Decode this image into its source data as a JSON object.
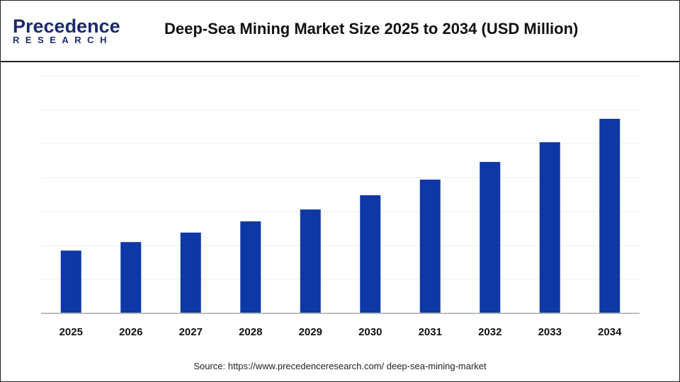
{
  "header": {
    "logo_text": "Precedence",
    "logo_subtext": "RESEARCH",
    "title": "Deep-Sea Mining Market Size 2025 to 2034 (USD Million)"
  },
  "source": "Source: https://www.precedenceresearch.com/ deep-sea-mining-market",
  "chart_data": {
    "type": "bar",
    "title": "Deep-Sea Mining Market Size 2025 to 2034 (USD Million)",
    "categories": [
      "2025",
      "2026",
      "2027",
      "2028",
      "2029",
      "2030",
      "2031",
      "2032",
      "2033",
      "2034"
    ],
    "values": [
      1.85,
      2.1,
      2.38,
      2.71,
      3.06,
      3.48,
      3.94,
      4.46,
      5.04,
      5.73
    ],
    "ylim": [
      0,
      7
    ],
    "grid": true,
    "bar_color": "#0e38a6",
    "xlabel": "",
    "ylabel": ""
  }
}
